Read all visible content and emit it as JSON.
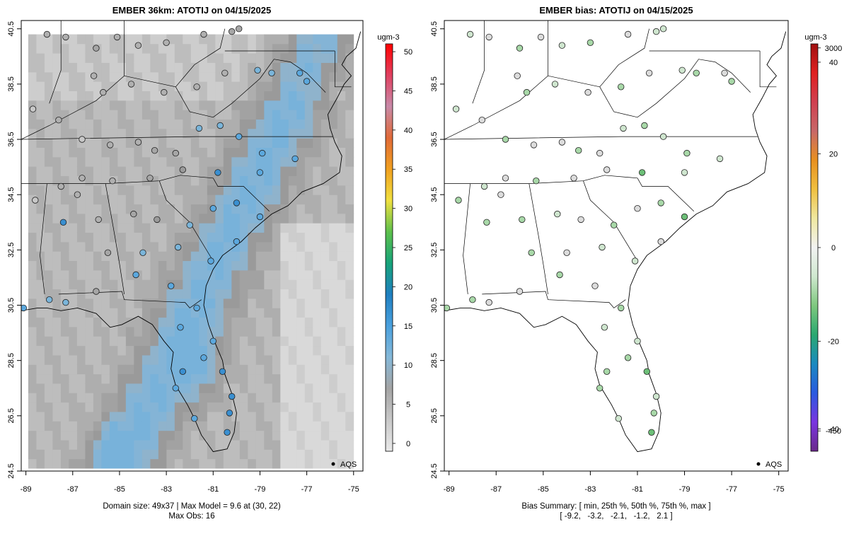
{
  "chart_data": [
    {
      "type": "heatmap",
      "title": "EMBER 36km: ATOTIJ on 04/15/2025",
      "xlim": [
        -89.2,
        -74.6
      ],
      "ylim": [
        24.5,
        40.8
      ],
      "x_ticks": [
        "-89",
        "-87",
        "-85",
        "-83",
        "-81",
        "-79",
        "-77",
        "-75"
      ],
      "y_ticks": [
        "24.5",
        "26.5",
        "28.5",
        "30.5",
        "32.5",
        "34.5",
        "36.5",
        "38.5",
        "40.5"
      ],
      "colorbar": {
        "unit_label": "ugm-3",
        "range": [
          -1,
          51
        ],
        "tick_labels": [
          "0",
          "5",
          "10",
          "15",
          "20",
          "25",
          "30",
          "35",
          "40",
          "45",
          "50"
        ],
        "stops": [
          "#e9e9e9",
          "#c8c8c8",
          "#a4a4a4",
          "#85b8d8",
          "#4aa0dd",
          "#1f7fc0",
          "#17a37a",
          "#5dc04c",
          "#f0e040",
          "#f0a020",
          "#e06a38",
          "#c88aa8",
          "#e04060",
          "#ff0000"
        ]
      },
      "legend": "AQS",
      "footer": [
        "Domain size: 49x37 | Max Model = 9.6 at (30, 22)",
        "Max Obs: 16"
      ],
      "model_field_note": "gridded model values ~0-9.6 (background gray/light blue)",
      "observations": [
        {
          "lon": -88.1,
          "lat": 40.3,
          "v": 3
        },
        {
          "lon": -87.3,
          "lat": 40.2,
          "v": 4
        },
        {
          "lon": -86.0,
          "lat": 39.8,
          "v": 5
        },
        {
          "lon": -85.1,
          "lat": 40.2,
          "v": 3
        },
        {
          "lon": -84.2,
          "lat": 39.9,
          "v": 4
        },
        {
          "lon": -83.0,
          "lat": 40.0,
          "v": 3
        },
        {
          "lon": -81.4,
          "lat": 40.3,
          "v": 4
        },
        {
          "lon": -80.2,
          "lat": 40.4,
          "v": 6
        },
        {
          "lon": -79.9,
          "lat": 40.5,
          "v": 5
        },
        {
          "lon": -86.1,
          "lat": 38.8,
          "v": 3
        },
        {
          "lon": -85.7,
          "lat": 38.2,
          "v": 4
        },
        {
          "lon": -84.5,
          "lat": 38.5,
          "v": 4
        },
        {
          "lon": -83.1,
          "lat": 38.2,
          "v": 3
        },
        {
          "lon": -81.7,
          "lat": 38.4,
          "v": 4
        },
        {
          "lon": -80.5,
          "lat": 38.9,
          "v": 4
        },
        {
          "lon": -79.1,
          "lat": 39.0,
          "v": 9
        },
        {
          "lon": -78.5,
          "lat": 38.9,
          "v": 10
        },
        {
          "lon": -77.3,
          "lat": 38.9,
          "v": 11
        },
        {
          "lon": -77.0,
          "lat": 38.6,
          "v": 12
        },
        {
          "lon": -88.7,
          "lat": 37.6,
          "v": 2
        },
        {
          "lon": -87.6,
          "lat": 37.2,
          "v": 3
        },
        {
          "lon": -86.6,
          "lat": 36.5,
          "v": 2
        },
        {
          "lon": -85.4,
          "lat": 36.3,
          "v": 3
        },
        {
          "lon": -84.2,
          "lat": 36.4,
          "v": 4
        },
        {
          "lon": -83.5,
          "lat": 36.1,
          "v": 5
        },
        {
          "lon": -82.6,
          "lat": 36.0,
          "v": 6
        },
        {
          "lon": -81.6,
          "lat": 36.9,
          "v": 9
        },
        {
          "lon": -80.7,
          "lat": 37.0,
          "v": 10
        },
        {
          "lon": -79.9,
          "lat": 36.6,
          "v": 13
        },
        {
          "lon": -78.9,
          "lat": 36.0,
          "v": 11
        },
        {
          "lon": -77.5,
          "lat": 35.8,
          "v": 12
        },
        {
          "lon": -79.0,
          "lat": 35.3,
          "v": 13
        },
        {
          "lon": -80.8,
          "lat": 35.3,
          "v": 14
        },
        {
          "lon": -82.3,
          "lat": 35.4,
          "v": 8
        },
        {
          "lon": -83.7,
          "lat": 35.1,
          "v": 6
        },
        {
          "lon": -85.3,
          "lat": 35.0,
          "v": 4
        },
        {
          "lon": -86.6,
          "lat": 35.1,
          "v": 3
        },
        {
          "lon": -87.5,
          "lat": 34.8,
          "v": 3
        },
        {
          "lon": -88.6,
          "lat": 34.3,
          "v": 2
        },
        {
          "lon": -86.8,
          "lat": 34.5,
          "v": 4
        },
        {
          "lon": -85.9,
          "lat": 33.6,
          "v": 3
        },
        {
          "lon": -84.4,
          "lat": 33.8,
          "v": 5
        },
        {
          "lon": -83.4,
          "lat": 33.6,
          "v": 8
        },
        {
          "lon": -82.0,
          "lat": 33.4,
          "v": 9
        },
        {
          "lon": -81.0,
          "lat": 34.0,
          "v": 12
        },
        {
          "lon": -80.0,
          "lat": 34.2,
          "v": 14
        },
        {
          "lon": -79.0,
          "lat": 33.7,
          "v": 13
        },
        {
          "lon": -80.0,
          "lat": 32.8,
          "v": 12
        },
        {
          "lon": -81.1,
          "lat": 32.1,
          "v": 11
        },
        {
          "lon": -82.5,
          "lat": 32.6,
          "v": 9
        },
        {
          "lon": -84.0,
          "lat": 32.4,
          "v": 10
        },
        {
          "lon": -85.5,
          "lat": 32.4,
          "v": 6
        },
        {
          "lon": -87.4,
          "lat": 33.5,
          "v": 14
        },
        {
          "lon": -86.0,
          "lat": 31.0,
          "v": 5
        },
        {
          "lon": -84.3,
          "lat": 31.6,
          "v": 11
        },
        {
          "lon": -82.8,
          "lat": 31.2,
          "v": 12
        },
        {
          "lon": -81.7,
          "lat": 30.4,
          "v": 13
        },
        {
          "lon": -88.0,
          "lat": 30.7,
          "v": 10
        },
        {
          "lon": -87.3,
          "lat": 30.6,
          "v": 9
        },
        {
          "lon": -89.1,
          "lat": 30.4,
          "v": 12
        },
        {
          "lon": -82.4,
          "lat": 29.7,
          "v": 11
        },
        {
          "lon": -81.0,
          "lat": 29.2,
          "v": 13
        },
        {
          "lon": -81.4,
          "lat": 28.6,
          "v": 12
        },
        {
          "lon": -82.3,
          "lat": 28.1,
          "v": 14
        },
        {
          "lon": -82.6,
          "lat": 27.5,
          "v": 13
        },
        {
          "lon": -80.6,
          "lat": 28.1,
          "v": 14
        },
        {
          "lon": -80.2,
          "lat": 27.2,
          "v": 16
        },
        {
          "lon": -80.3,
          "lat": 26.6,
          "v": 15
        },
        {
          "lon": -80.4,
          "lat": 25.9,
          "v": 14
        },
        {
          "lon": -81.8,
          "lat": 26.4,
          "v": 13
        }
      ]
    },
    {
      "type": "scatter",
      "title": "EMBER bias: ATOTIJ on 04/15/2025",
      "xlim": [
        -89.2,
        -74.6
      ],
      "ylim": [
        24.5,
        40.8
      ],
      "x_ticks": [
        "-89",
        "-87",
        "-85",
        "-83",
        "-81",
        "-79",
        "-77",
        "-75"
      ],
      "y_ticks": [
        "24.5",
        "26.5",
        "28.5",
        "30.5",
        "32.5",
        "34.5",
        "36.5",
        "38.5",
        "40.5"
      ],
      "colorbar": {
        "unit_label": "ugm-3",
        "tick_labels": [
          "-450",
          "-40",
          "-20",
          "0",
          "20",
          "40",
          "3000"
        ],
        "stops": [
          "#6a2a8a",
          "#7a35e0",
          "#2a5ae0",
          "#1a8ac0",
          "#2aa870",
          "#7ec87e",
          "#cfe8cf",
          "#f2f2f2",
          "#f0e8a0",
          "#f0c040",
          "#e89020",
          "#c86868",
          "#d04050",
          "#e02020",
          "#a01010"
        ]
      },
      "legend": "AQS",
      "footer": [
        "Bias Summary: [ min, 25th %, 50th %, 75th %, max ]",
        "[ -9.2,   -3.2,   -2.1,   -1.2,   2.1 ]"
      ],
      "bias_summary": {
        "min": -9.2,
        "p25": -3.2,
        "p50": -2.1,
        "p75": -1.2,
        "max": 2.1
      }
    }
  ]
}
